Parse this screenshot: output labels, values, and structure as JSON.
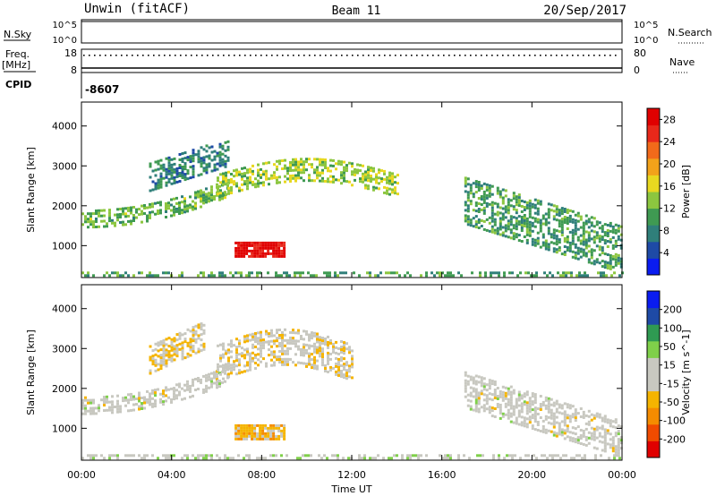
{
  "header": {
    "radar": "Unwin (fitACF)",
    "beam": "Beam 11",
    "date": "20/Sep/2017"
  },
  "left_labels": {
    "nsky": "N.Sky",
    "freq": "Freq.",
    "freq_unit": "[MHz]",
    "cpid": "CPID"
  },
  "right_labels": {
    "nsearch": "N.Search",
    "nave": "Nave"
  },
  "cpid_value": "-8607",
  "nsky_ticks": [
    "10^5",
    "10^0"
  ],
  "nsearch_ticks": [
    "10^5",
    "10^0"
  ],
  "freq_ticks": [
    "18",
    "8"
  ],
  "nave_ticks": [
    "80",
    "0"
  ],
  "colors": {
    "frame": "#000000",
    "power_scale": [
      "#0a1cf0",
      "#1e4aa6",
      "#2f7f7a",
      "#3f9a52",
      "#8cc63f",
      "#e8d820",
      "#f2a21a",
      "#f26a1a",
      "#e8281a",
      "#e00000"
    ],
    "velocity_scale": [
      "#e00000",
      "#f04b00",
      "#f58c00",
      "#f5b400",
      "#c8c8c0",
      "#c8c8c0",
      "#7fd04a",
      "#2f9a52",
      "#1e4aa6",
      "#0a1cf0"
    ]
  },
  "chart_data": [
    {
      "type": "heatmap",
      "title": "",
      "xlabel": "Time UT",
      "ylabel": "Slant Range [km]",
      "xticks": [
        "00:00",
        "04:00",
        "08:00",
        "12:00",
        "16:00",
        "20:00",
        "00:00"
      ],
      "xlim_hours": [
        0,
        24
      ],
      "yticks": [
        "1000",
        "2000",
        "3000",
        "4000"
      ],
      "ylim": [
        200,
        4600
      ],
      "colorbar_label": "Power [dB]",
      "colorbar_ticks": [
        "4",
        "8",
        "12",
        "16",
        "20",
        "24",
        "28"
      ],
      "colorbar_range": [
        0,
        30
      ],
      "regions": [
        {
          "name": "evening-band",
          "t0": 0.0,
          "t1": 6.5,
          "r0": 1450,
          "r1": 1900,
          "value": 12
        },
        {
          "name": "upper-arc",
          "t0": 3.0,
          "t1": 6.5,
          "r0": 2700,
          "r1": 3400,
          "value": 8
        },
        {
          "name": "midnight-arc",
          "t0": 6.0,
          "t1": 14.0,
          "r0": 2200,
          "r1": 2800,
          "value": 14
        },
        {
          "name": "strong-echo",
          "t0": 6.8,
          "t1": 9.0,
          "r0": 700,
          "r1": 1100,
          "value": 28
        },
        {
          "name": "near-range",
          "t0": 0.0,
          "t1": 24.0,
          "r0": 200,
          "r1": 350,
          "value": 10
        },
        {
          "name": "morning-band",
          "t0": 17.0,
          "t1": 24.0,
          "r0": 900,
          "r1": 2100,
          "value": 10
        }
      ]
    },
    {
      "type": "heatmap",
      "title": "",
      "xlabel": "Time UT",
      "ylabel": "Slant Range [km]",
      "xticks": [
        "00:00",
        "04:00",
        "08:00",
        "12:00",
        "16:00",
        "20:00",
        "00:00"
      ],
      "xlim_hours": [
        0,
        24
      ],
      "yticks": [
        "1000",
        "2000",
        "3000",
        "4000"
      ],
      "ylim": [
        200,
        4600
      ],
      "colorbar_label": "Velocity [m s^-1]",
      "colorbar_ticks": [
        "200",
        "100",
        "50",
        "15",
        "-15",
        "-50",
        "-100",
        "-200"
      ],
      "colorbar_range": [
        -250,
        250
      ],
      "regions": [
        {
          "name": "evening-band",
          "t0": 0.0,
          "t1": 6.5,
          "r0": 1350,
          "r1": 1800,
          "value": 0
        },
        {
          "name": "upper-arc",
          "t0": 3.0,
          "t1": 5.5,
          "r0": 2700,
          "r1": 3400,
          "value": -40
        },
        {
          "name": "midnight-arc",
          "t0": 6.0,
          "t1": 12.0,
          "r0": 2200,
          "r1": 3100,
          "value": -20
        },
        {
          "name": "strong-echo",
          "t0": 6.8,
          "t1": 9.0,
          "r0": 700,
          "r1": 1100,
          "value": -70
        },
        {
          "name": "near-range",
          "t0": 0.0,
          "t1": 24.0,
          "r0": 200,
          "r1": 350,
          "value": 20
        },
        {
          "name": "morning-band",
          "t0": 17.0,
          "t1": 24.0,
          "r0": 900,
          "r1": 1800,
          "value": 0
        }
      ]
    }
  ]
}
